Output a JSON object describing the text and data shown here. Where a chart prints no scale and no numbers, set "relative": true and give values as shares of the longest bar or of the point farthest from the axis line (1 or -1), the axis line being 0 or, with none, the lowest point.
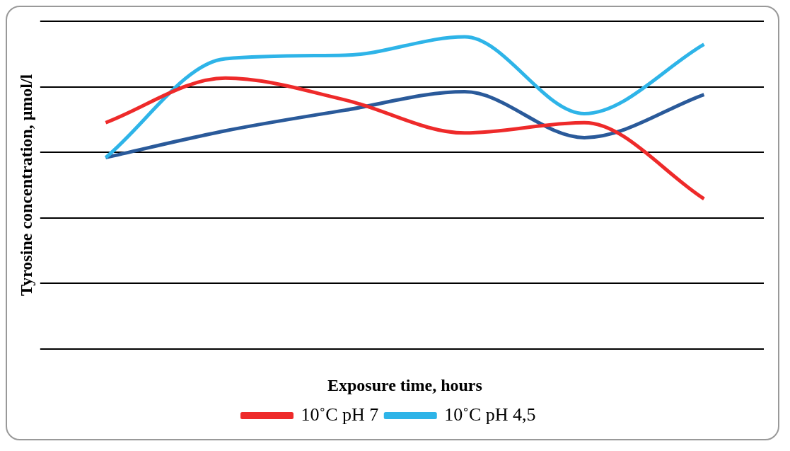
{
  "chart_data": {
    "type": "line",
    "relative": true,
    "xlabel": "Exposure time, hours",
    "ylabel": "Tyrosine concentration, μmol/l",
    "categories": [
      null,
      null,
      null,
      null,
      null,
      null
    ],
    "series": [
      {
        "name": "10˚C pH 7",
        "color": "#ee2a2a",
        "values": [
          0.725,
          0.868,
          0.798,
          0.692,
          0.725,
          0.481
        ]
      },
      {
        "name": "10˚C pH 4,5",
        "color": "#2eb4e8",
        "values": [
          0.613,
          0.93,
          0.941,
          1,
          0.754,
          0.976
        ]
      },
      {
        "color": "#2a5a9a",
        "values": [
          0.613,
          0.699,
          0.765,
          0.824,
          0.677,
          0.815
        ]
      }
    ],
    "grid": "y",
    "legend": "bottom",
    "marker": "none",
    "line_style": "solid"
  }
}
